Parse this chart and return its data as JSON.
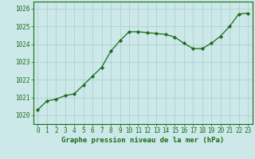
{
  "x": [
    0,
    1,
    2,
    3,
    4,
    5,
    6,
    7,
    8,
    9,
    10,
    11,
    12,
    13,
    14,
    15,
    16,
    17,
    18,
    19,
    20,
    21,
    22,
    23
  ],
  "y": [
    1020.3,
    1020.8,
    1020.9,
    1021.1,
    1021.2,
    1021.7,
    1022.2,
    1022.7,
    1023.6,
    1024.2,
    1024.7,
    1024.7,
    1024.65,
    1024.6,
    1024.55,
    1024.4,
    1024.05,
    1023.75,
    1023.75,
    1024.05,
    1024.45,
    1025.0,
    1025.7,
    1025.75
  ],
  "line_color": "#1a6b1a",
  "marker": "D",
  "marker_size": 2.2,
  "bg_color": "#cce8e8",
  "grid_color": "#aacccc",
  "axis_label_color": "#1a6b1a",
  "tick_color": "#1a6b1a",
  "xlabel": "Graphe pression niveau de la mer (hPa)",
  "ylim": [
    1019.5,
    1026.4
  ],
  "yticks": [
    1020,
    1021,
    1022,
    1023,
    1024,
    1025,
    1026
  ],
  "xticks": [
    0,
    1,
    2,
    3,
    4,
    5,
    6,
    7,
    8,
    9,
    10,
    11,
    12,
    13,
    14,
    15,
    16,
    17,
    18,
    19,
    20,
    21,
    22,
    23
  ],
  "xlabel_fontsize": 6.5,
  "tick_fontsize": 5.5,
  "linewidth": 0.9
}
